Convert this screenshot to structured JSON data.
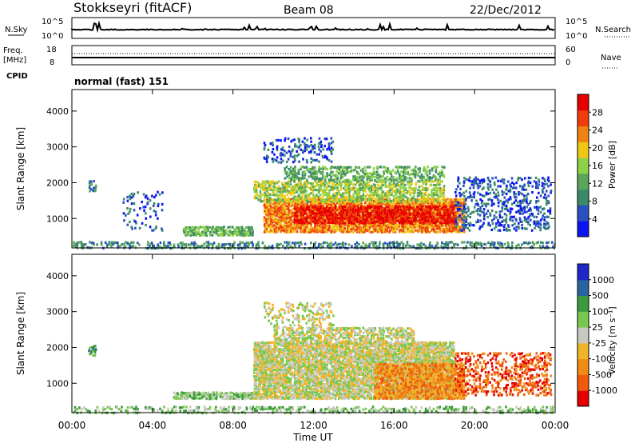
{
  "header": {
    "station": "Stokkseyri (fitACF)",
    "beam": "Beam 08",
    "date": "22/Dec/2012"
  },
  "top_panels": {
    "nsky_label": "N.Sky",
    "nsky_ticks": [
      "10^5",
      "10^0"
    ],
    "nsearch_label": "N.Search",
    "nsearch_ticks": [
      "10^5",
      "10^0"
    ],
    "freq_label_1": "Freq.",
    "freq_label_2": "[MHz]",
    "freq_ticks": [
      "18",
      "8"
    ],
    "nave_label": "Nave",
    "nave_ticks": [
      "60",
      "0"
    ],
    "cpid_label": "CPID",
    "cpid_value": "normal (fast) 151"
  },
  "colors": {
    "power_scale": [
      "#0a14f0",
      "#2850c0",
      "#3a8a6a",
      "#5aa55a",
      "#8cd246",
      "#f0c814",
      "#f08214",
      "#f03c0a",
      "#e60000"
    ],
    "velocity_scale": [
      "#e60000",
      "#f05a0a",
      "#f08c14",
      "#f0b428",
      "#c8c8c0",
      "#78c850",
      "#3c9a3c",
      "#2864a0",
      "#1e28c8"
    ]
  },
  "chart_data": [
    {
      "type": "heatmap",
      "title": "",
      "ylabel": "Slant Range [km]",
      "ylim": [
        180,
        4600
      ],
      "yticks": [
        "1000",
        "2000",
        "3000",
        "4000"
      ],
      "xlim_hours": [
        0,
        24
      ],
      "colorbar_label": "Power [dB]",
      "colorbar_ticks": [
        "4",
        "8",
        "12",
        "16",
        "20",
        "24",
        "28"
      ],
      "regions": [
        {
          "t0": 0.0,
          "t1": 24.0,
          "r0": 200,
          "r1": 400,
          "level": 2,
          "density": 0.45
        },
        {
          "t0": 5.5,
          "t1": 9.0,
          "r0": 560,
          "r1": 820,
          "level": 3,
          "density": 0.8
        },
        {
          "t0": 9.5,
          "t1": 19.5,
          "r0": 650,
          "r1": 1600,
          "level": 6,
          "density": 0.85
        },
        {
          "t0": 11.0,
          "t1": 19.0,
          "r0": 900,
          "r1": 1400,
          "level": 8,
          "density": 0.75
        },
        {
          "t0": 9.0,
          "t1": 18.5,
          "r0": 1500,
          "r1": 2100,
          "level": 4,
          "density": 0.6
        },
        {
          "t0": 10.5,
          "t1": 18.5,
          "r0": 2100,
          "r1": 2500,
          "level": 3,
          "density": 0.5
        },
        {
          "t0": 9.5,
          "t1": 13.0,
          "r0": 2600,
          "r1": 3300,
          "level": 1,
          "density": 0.25
        },
        {
          "t0": 19.0,
          "t1": 23.8,
          "r0": 700,
          "r1": 2200,
          "level": 1,
          "density": 0.3
        },
        {
          "t0": 0.8,
          "t1": 1.2,
          "r0": 1800,
          "r1": 2100,
          "level": 2,
          "density": 0.6
        },
        {
          "t0": 2.5,
          "t1": 4.5,
          "r0": 700,
          "r1": 1800,
          "level": 1,
          "density": 0.15
        }
      ]
    },
    {
      "type": "heatmap",
      "title": "",
      "xlabel": "Time UT",
      "ylabel": "Slant Range [km]",
      "ylim": [
        180,
        4600
      ],
      "yticks": [
        "1000",
        "2000",
        "3000",
        "4000"
      ],
      "xticks": [
        "00:00",
        "04:00",
        "08:00",
        "12:00",
        "16:00",
        "20:00",
        "00:00"
      ],
      "xlim_hours": [
        0,
        24
      ],
      "colorbar_label": "Velocity [m s⁻¹]",
      "colorbar_ticks": [
        "-1000",
        "-500",
        "-100",
        "-25",
        "25",
        "100",
        "500",
        "1000"
      ],
      "regions": [
        {
          "t0": 0.0,
          "t1": 24.0,
          "r0": 200,
          "r1": 400,
          "level": 5,
          "density": 0.4
        },
        {
          "t0": 5.0,
          "t1": 9.0,
          "r0": 600,
          "r1": 800,
          "level": 5,
          "density": 0.8
        },
        {
          "t0": 9.0,
          "t1": 19.0,
          "r0": 600,
          "r1": 2200,
          "level": 4,
          "density": 0.85
        },
        {
          "t0": 10.0,
          "t1": 17.0,
          "r0": 2200,
          "r1": 2600,
          "level": 4,
          "density": 0.6
        },
        {
          "t0": 15.0,
          "t1": 19.5,
          "r0": 600,
          "r1": 1600,
          "level": 2,
          "density": 0.75
        },
        {
          "t0": 9.5,
          "t1": 13.0,
          "r0": 2600,
          "r1": 3300,
          "level": 4,
          "density": 0.3
        },
        {
          "t0": 19.0,
          "t1": 23.8,
          "r0": 700,
          "r1": 1900,
          "level": 1,
          "density": 0.35
        },
        {
          "t0": 0.8,
          "t1": 1.2,
          "r0": 1800,
          "r1": 2100,
          "level": 6,
          "density": 0.6
        }
      ]
    }
  ]
}
